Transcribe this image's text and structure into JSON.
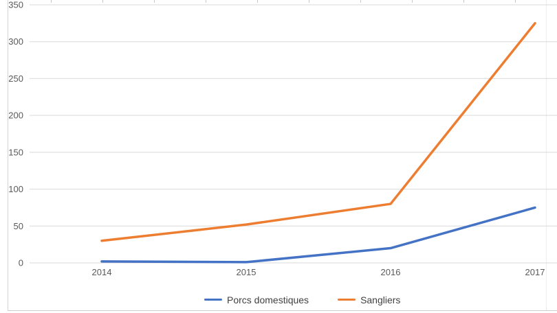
{
  "chart_data": {
    "type": "line",
    "title": "",
    "categories": [
      "2014",
      "2015",
      "2016",
      "2017"
    ],
    "series": [
      {
        "name": "Porcs domestiques",
        "color": "#4472C4",
        "values": [
          2,
          1,
          20,
          75
        ]
      },
      {
        "name": "Sangliers",
        "color": "#ED7D31",
        "values": [
          30,
          52,
          80,
          325
        ]
      }
    ],
    "xlabel": "",
    "ylabel": "",
    "ylim": [
      0,
      350
    ],
    "yticks": [
      0,
      50,
      100,
      150,
      200,
      250,
      300,
      350
    ],
    "grid": true,
    "legend_position": "bottom",
    "colors": {
      "gridline": "#D9D9D9",
      "axis_label": "#595959",
      "legend_text": "#3F3F3F",
      "background": "#FFFFFF"
    }
  }
}
